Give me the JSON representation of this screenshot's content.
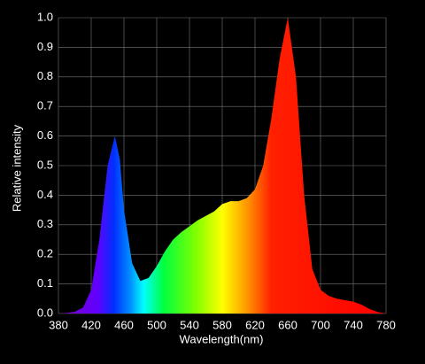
{
  "chart_data": {
    "type": "area",
    "x_label": "Wavelength(nm)",
    "y_label": "Relative intensity",
    "x": [
      380,
      390,
      400,
      410,
      420,
      430,
      440,
      449,
      455,
      460,
      470,
      480,
      490,
      500,
      510,
      520,
      530,
      540,
      550,
      560,
      570,
      580,
      590,
      600,
      610,
      620,
      630,
      640,
      650,
      660,
      670,
      680,
      690,
      700,
      710,
      720,
      730,
      740,
      750,
      760,
      770,
      780
    ],
    "values": [
      0,
      0.002,
      0.006,
      0.02,
      0.08,
      0.25,
      0.5,
      0.6,
      0.52,
      0.35,
      0.17,
      0.11,
      0.12,
      0.16,
      0.21,
      0.25,
      0.275,
      0.295,
      0.315,
      0.33,
      0.345,
      0.37,
      0.38,
      0.38,
      0.39,
      0.42,
      0.5,
      0.66,
      0.86,
      1.0,
      0.8,
      0.4,
      0.15,
      0.08,
      0.06,
      0.05,
      0.045,
      0.04,
      0.03,
      0.015,
      0.005,
      0
    ],
    "xlim": [
      380,
      780
    ],
    "xticks": [
      380,
      420,
      460,
      500,
      540,
      580,
      620,
      660,
      700,
      740,
      780
    ],
    "ylim": [
      0,
      1
    ],
    "yticks": [
      {
        "value": 0,
        "label": "0.0"
      },
      0.1,
      0.2,
      0.3,
      0.4,
      0.5,
      0.6,
      0.7,
      0.8,
      0.9,
      {
        "value": 1,
        "label": "1.0"
      }
    ],
    "grid": true
  }
}
